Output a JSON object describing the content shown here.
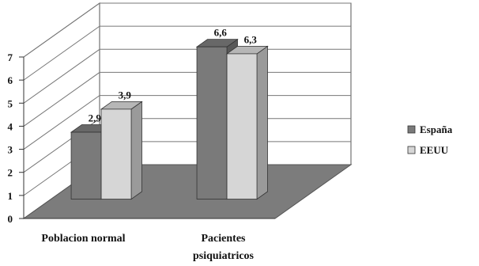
{
  "chart_data": {
    "type": "bar",
    "title": "",
    "xlabel": "",
    "ylabel": "",
    "ylim": [
      0,
      7
    ],
    "yticks": [
      "0",
      "1",
      "2",
      "3",
      "4",
      "5",
      "6",
      "7"
    ],
    "categories": [
      [
        "Poblacion normal"
      ],
      [
        "Pacientes",
        "psiquiatricos"
      ]
    ],
    "series": [
      {
        "name": "España",
        "values": [
          2.9,
          6.6
        ],
        "labels": [
          "2,9",
          "6,6"
        ],
        "color": "#7a7a7a"
      },
      {
        "name": "EEUU",
        "values": [
          3.9,
          6.3
        ],
        "labels": [
          "3,9",
          "6,3"
        ],
        "color": "#d6d6d6"
      }
    ],
    "grid": true,
    "three_d": true,
    "legend": "right"
  }
}
